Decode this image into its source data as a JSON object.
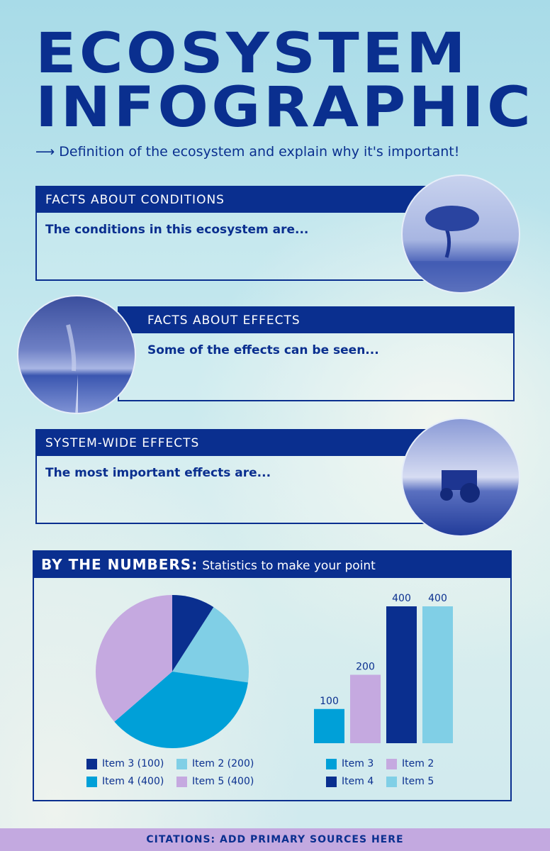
{
  "header": {
    "title_line1": "ECOSYSTEM",
    "title_line2": "INFOGRAPHIC",
    "subtitle": "⟶ Definition of the ecosystem and explain why it's important!"
  },
  "sections": [
    {
      "heading": "FACTS ABOUT CONDITIONS",
      "body": "The conditions in this ecosystem are...",
      "image": "lone-tree-photo"
    },
    {
      "heading": "FACTS ABOUT EFFECTS",
      "body": "Some of the effects can be seen...",
      "image": "tornado-field-photo"
    },
    {
      "heading": "SYSTEM-WIDE EFFECTS",
      "body": "The most important effects are...",
      "image": "tractor-photo"
    }
  ],
  "numbers": {
    "heading": "BY THE NUMBERS:",
    "subheading": "Statistics to make your point"
  },
  "colors": {
    "dark": "#0a2f8f",
    "medium": "#00a0d8",
    "light": "#80cfe6",
    "lavender": "#c5a9e0"
  },
  "chart_data": [
    {
      "type": "pie",
      "slices": [
        {
          "name": "Item 3",
          "value": 100,
          "label": "Item 3 (100)",
          "color": "#0a2f8f"
        },
        {
          "name": "Item 2",
          "value": 200,
          "label": "Item 2 (200)",
          "color": "#80cfe6"
        },
        {
          "name": "Item 4",
          "value": 400,
          "label": "Item 4 (400)",
          "color": "#00a0d8"
        },
        {
          "name": "Item 5",
          "value": 400,
          "label": "Item 5 (400)",
          "color": "#c5a9e0"
        }
      ],
      "legend": "bottom"
    },
    {
      "type": "bar",
      "categories": [
        "Item 3",
        "Item 2",
        "Item 4",
        "Item 5"
      ],
      "values": [
        100,
        200,
        400,
        400
      ],
      "colors": [
        "#00a0d8",
        "#c5a9e0",
        "#0a2f8f",
        "#80cfe6"
      ],
      "ylim": [
        0,
        400
      ],
      "data_labels": true,
      "legend": "bottom",
      "grid": false
    }
  ],
  "footer": {
    "citations": "CITATIONS: ADD PRIMARY SOURCES HERE"
  }
}
